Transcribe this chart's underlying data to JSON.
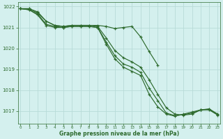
{
  "title": "Graphe pression niveau de la mer (hPa)",
  "bg_color": "#d4f0ee",
  "grid_color": "#b8dbd8",
  "line_color": "#2d6a2d",
  "xlim": [
    -0.3,
    23.3
  ],
  "ylim": [
    1016.4,
    1022.2
  ],
  "yticks": [
    1017,
    1018,
    1019,
    1020,
    1021,
    1022
  ],
  "xticks": [
    0,
    1,
    2,
    3,
    4,
    5,
    6,
    7,
    8,
    9,
    10,
    11,
    12,
    13,
    14,
    15,
    16,
    17,
    18,
    19,
    20,
    21,
    22,
    23
  ],
  "series": [
    [
      1021.9,
      1021.9,
      1021.7,
      1021.3,
      1021.1,
      1021.05,
      1021.1,
      1021.1,
      1021.1,
      1021.1,
      1021.05,
      1020.95,
      1021.0,
      1021.05,
      1020.55,
      1019.85,
      1019.2,
      null,
      null,
      null,
      null,
      null,
      null,
      null
    ],
    [
      1021.9,
      1021.9,
      1021.75,
      1021.3,
      1021.1,
      1021.05,
      1021.1,
      1021.1,
      1021.1,
      1021.05,
      1020.5,
      1019.9,
      1019.55,
      1019.35,
      1019.1,
      1018.5,
      1017.8,
      1017.15,
      1016.85,
      1016.8,
      1016.85,
      1017.05,
      1017.1,
      1016.85
    ],
    [
      1021.9,
      1021.85,
      1021.6,
      1021.1,
      1021.0,
      1021.0,
      1021.05,
      1021.05,
      1021.05,
      1021.0,
      1020.2,
      1019.5,
      1019.1,
      1018.9,
      1018.7,
      1017.8,
      1017.2,
      1016.85,
      1016.75,
      1016.85,
      1016.95,
      1017.05,
      1017.05,
      1016.8
    ],
    [
      1021.9,
      1021.85,
      1021.65,
      1021.15,
      1021.05,
      1021.0,
      1021.05,
      1021.05,
      1021.05,
      1021.0,
      1020.3,
      1019.65,
      1019.25,
      1019.1,
      1018.85,
      1018.1,
      1017.5,
      1016.9,
      1016.78,
      1016.82,
      1016.9,
      1017.05,
      1017.08,
      1016.82
    ]
  ]
}
